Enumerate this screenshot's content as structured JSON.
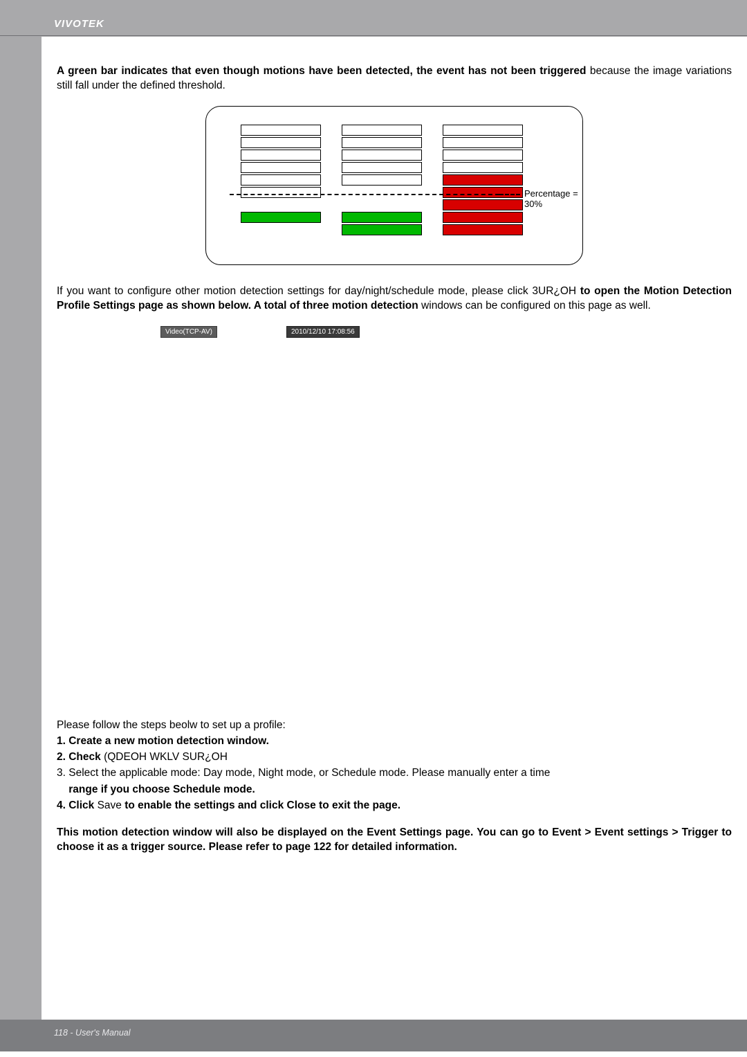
{
  "brand": "VIVOTEK",
  "intro_bold": "A green bar indicates that even though motions have been detected, the event has not been triggered",
  "intro_rest": " because the image variations still fall under the defined threshold.",
  "diagram": {
    "percentage_label": "Percentage = 30%",
    "columns": [
      {
        "segments": [
          "white",
          "white",
          "white",
          "white",
          "white",
          "white",
          "blank",
          "green",
          "blank"
        ]
      },
      {
        "segments": [
          "white",
          "white",
          "white",
          "white",
          "white",
          "blank",
          "blank",
          "green",
          "green"
        ]
      },
      {
        "segments": [
          "white",
          "white",
          "white",
          "white",
          "red",
          "red",
          "red",
          "red",
          "red"
        ]
      }
    ],
    "colors": {
      "white": "#ffffff",
      "red": "#d80000",
      "green": "#00b800",
      "border": "#000000"
    }
  },
  "mid_para_1": "If you want to configure other motion detection settings for day/night/schedule mode, please click 3UR¿OH ",
  "mid_para_bold": "to open the Motion Detection Profile Settings page as shown below. A total of three motion detection",
  "mid_para_2": " windows can be configured on this page as well.",
  "video": {
    "badge": "Video(TCP-AV)",
    "timestamp": "2010/12/10  17:08:56"
  },
  "steps_intro": "Please follow the steps beolw to set up a profile:",
  "step1": "1. Create a new motion detection window.",
  "step2_a": "2. Check",
  "step2_b": " (QDEOH WKLV SUR¿OH",
  "step3_a": "3. Select the applicable mode: Day mode, Night mode, or Schedule mode. Please manually enter a time ",
  "step3_b": "range if you choose Schedule mode.",
  "step4_a": "4. Click ",
  "step4_b": "Save",
  "step4_c": " to enable the settings and click Close",
  "step4_d": " to exit the page.",
  "closing_1": "This motion detection window will also be displayed on the Event Settings page. You can go to Event ",
  "closing_2": "> Event settings > Trigger to choose it as a trigger source. Please refer to page 122 for detailed information.",
  "footer": "118 - User's Manual"
}
